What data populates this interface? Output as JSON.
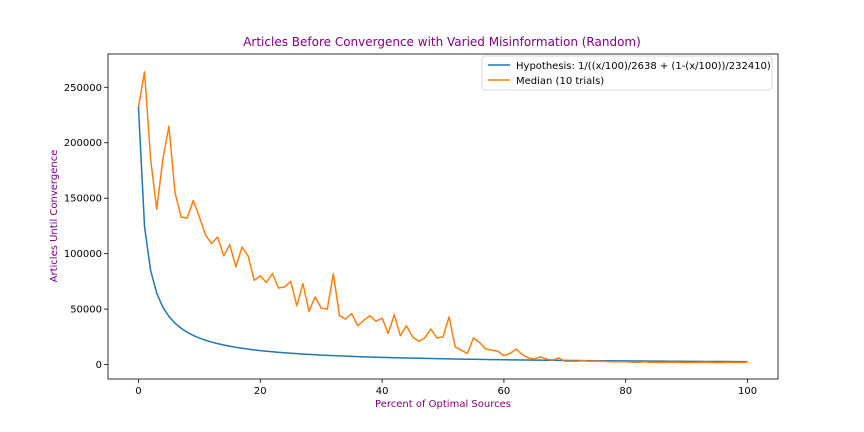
{
  "chart_data": {
    "type": "line",
    "title": "Articles Before Convergence with Varied Misinformation (Random)",
    "xlabel": "Percent of Optimal Sources",
    "ylabel": "Articles Until Convergence",
    "xlim": [
      -5,
      105
    ],
    "ylim": [
      -13000,
      280000
    ],
    "xticks": [
      0,
      20,
      40,
      60,
      80,
      100
    ],
    "yticks": [
      0,
      50000,
      100000,
      150000,
      200000,
      250000
    ],
    "legend_position": "top-right",
    "grid": false,
    "series": [
      {
        "name": "Hypothesis: 1/((x/100)/2638 + (1-(x/100))/232410)",
        "color": "#1f77b4",
        "formula": {
          "a": 2638,
          "b": 232410
        },
        "x_range": [
          0,
          100
        ],
        "x_step": 1
      },
      {
        "name": "Median (10 trials)",
        "color": "#ff7f0e",
        "x": [
          0,
          1,
          2,
          3,
          4,
          5,
          6,
          7,
          8,
          9,
          10,
          11,
          12,
          13,
          14,
          15,
          16,
          17,
          18,
          19,
          20,
          21,
          22,
          23,
          24,
          25,
          26,
          27,
          28,
          29,
          30,
          31,
          32,
          33,
          34,
          35,
          36,
          37,
          38,
          39,
          40,
          41,
          42,
          43,
          44,
          45,
          46,
          47,
          48,
          49,
          50,
          51,
          52,
          53,
          54,
          55,
          56,
          57,
          58,
          59,
          60,
          61,
          62,
          63,
          64,
          65,
          66,
          67,
          68,
          69,
          70,
          71,
          72,
          73,
          74,
          75,
          76,
          77,
          78,
          79,
          80,
          81,
          82,
          83,
          84,
          85,
          86,
          87,
          88,
          89,
          90,
          91,
          92,
          93,
          94,
          95,
          96,
          97,
          98,
          99,
          100
        ],
        "values": [
          232000,
          264000,
          185000,
          140000,
          185000,
          215000,
          155000,
          133000,
          132000,
          148000,
          133000,
          117000,
          109000,
          115000,
          98000,
          108000,
          88000,
          106000,
          98000,
          76000,
          80000,
          74000,
          82000,
          69000,
          70000,
          75000,
          53000,
          73000,
          48000,
          61000,
          51000,
          50000,
          82000,
          44000,
          41000,
          46000,
          35000,
          40000,
          44000,
          39000,
          42000,
          28000,
          45000,
          26000,
          35000,
          25000,
          21000,
          24000,
          32000,
          24000,
          25000,
          43000,
          16000,
          13000,
          10000,
          24000,
          20000,
          14000,
          13000,
          12000,
          8000,
          10000,
          14000,
          9000,
          6000,
          5000,
          7000,
          5000,
          4000,
          6000,
          3000,
          3000,
          3000,
          3500,
          3000,
          3200,
          3000,
          2800,
          2500,
          2500,
          2500,
          2200,
          2000,
          2500,
          2000,
          2000,
          2100,
          2000,
          2200,
          2000,
          1800,
          2000,
          2000,
          2200,
          2000,
          1800,
          2000,
          2200,
          2000,
          2000,
          2200
        ]
      }
    ]
  }
}
